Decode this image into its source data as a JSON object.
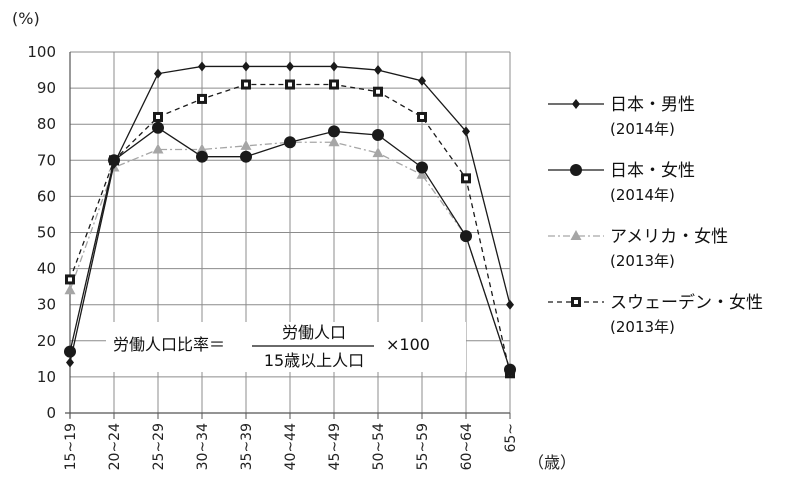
{
  "chart_data": {
    "type": "line",
    "y_unit": "(%)",
    "x_unit": "（歳）",
    "categories": [
      "15~19",
      "20~24",
      "25~29",
      "30~34",
      "35~39",
      "40~44",
      "45~49",
      "50~54",
      "55~59",
      "60~64",
      "65~"
    ],
    "ylim": [
      0,
      100
    ],
    "yticks": [
      "0",
      "10",
      "20",
      "30",
      "40",
      "50",
      "60",
      "70",
      "80",
      "90",
      "100"
    ],
    "grid": true,
    "legend_position": "right",
    "series": [
      {
        "name": "日本・男性",
        "year": "(2014年)",
        "marker": "diamond",
        "dash": "solid",
        "color": "#1a1a1a",
        "values": [
          14,
          69,
          94,
          96,
          96,
          96,
          96,
          95,
          92,
          78,
          30
        ]
      },
      {
        "name": "日本・女性",
        "year": "(2014年)",
        "marker": "circle",
        "dash": "solid",
        "color": "#1a1a1a",
        "values": [
          17,
          70,
          79,
          71,
          71,
          75,
          78,
          77,
          68,
          49,
          12
        ]
      },
      {
        "name": "アメリカ・女性",
        "year": "(2013年)",
        "marker": "triangle",
        "dash": "dashdot",
        "color": "#a6a6a6",
        "values": [
          34,
          68,
          73,
          73,
          74,
          75,
          75,
          72,
          66,
          49,
          12
        ]
      },
      {
        "name": "スウェーデン・女性",
        "year": "(2013年)",
        "marker": "square",
        "dash": "dash",
        "color": "#1a1a1a",
        "values": [
          37,
          70,
          82,
          87,
          91,
          91,
          91,
          89,
          82,
          65,
          11
        ]
      }
    ],
    "annotation": {
      "label": "労働人口比率＝",
      "numerator": "労働人口",
      "denominator": "15歳以上人口",
      "multiplier": "×100"
    }
  }
}
